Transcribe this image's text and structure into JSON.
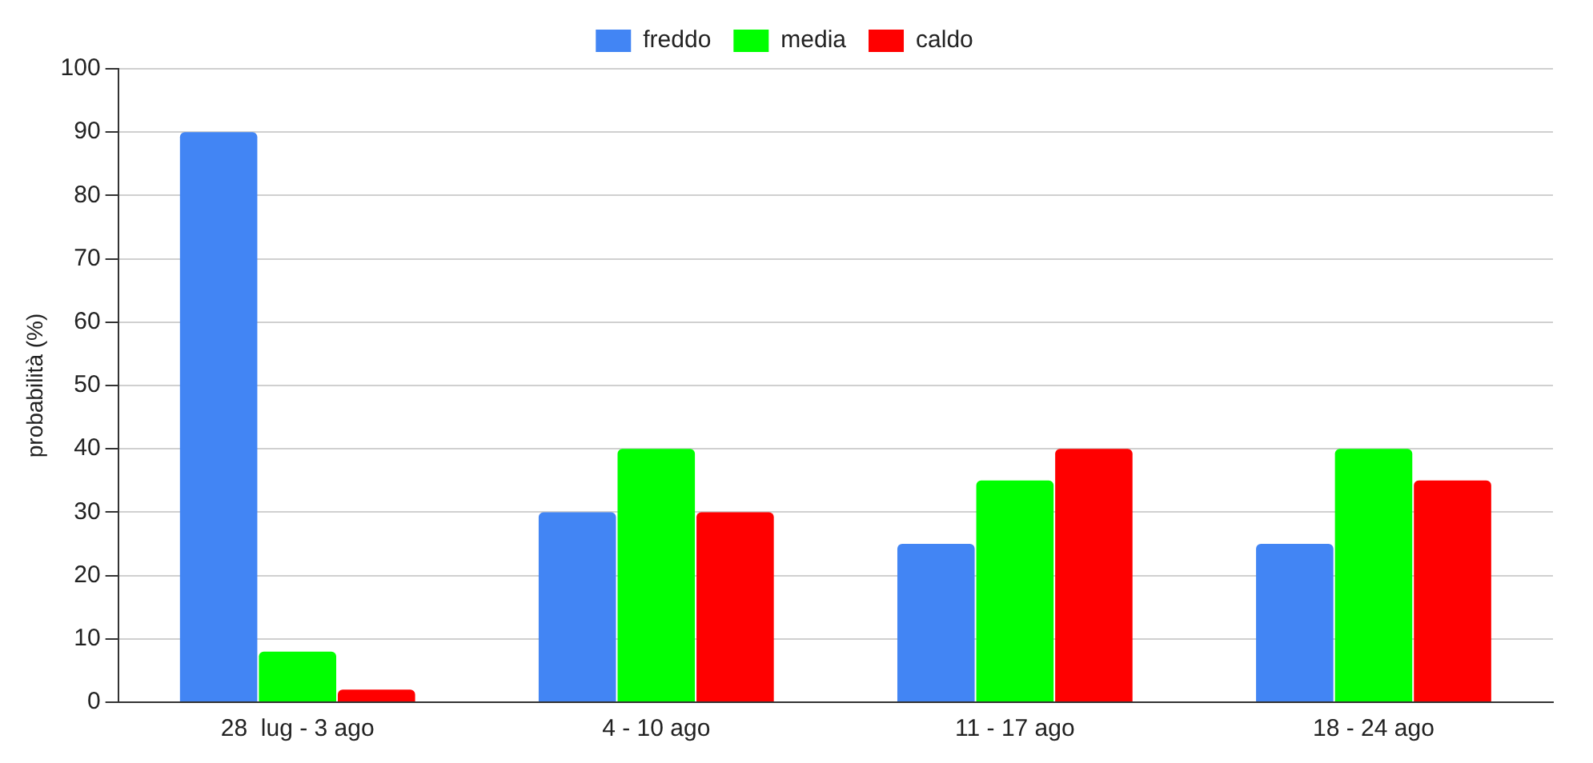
{
  "chart_data": {
    "type": "bar",
    "ylabel": "probabilità (%)",
    "categories": [
      "28  lug - 3 ago",
      "4 - 10 ago",
      "11 - 17 ago",
      "18 - 24 ago"
    ],
    "series": [
      {
        "name": "freddo",
        "color": "#4285f4",
        "values": [
          90,
          30,
          25,
          25
        ]
      },
      {
        "name": "media",
        "color": "#00ff00",
        "values": [
          8,
          40,
          35,
          40
        ]
      },
      {
        "name": "caldo",
        "color": "#ff0000",
        "values": [
          2,
          30,
          40,
          35
        ]
      }
    ],
    "ylim": [
      0,
      100
    ],
    "yticks": [
      0,
      10,
      20,
      30,
      40,
      50,
      60,
      70,
      80,
      90,
      100
    ],
    "grid": "y",
    "legend": "top"
  }
}
